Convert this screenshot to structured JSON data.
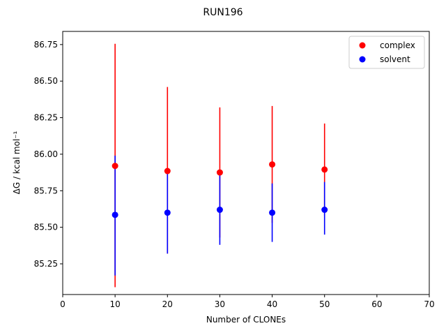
{
  "chart_data": {
    "type": "scatter",
    "title": "RUN196",
    "xlabel": "Number of CLONEs",
    "ylabel": "ΔG / kcal mol⁻¹",
    "xlim": [
      0,
      70
    ],
    "ylim": [
      85.04,
      86.84
    ],
    "xticks": [
      0,
      10,
      20,
      30,
      40,
      50,
      60,
      70
    ],
    "yticks": [
      85.25,
      85.5,
      85.75,
      86.0,
      86.25,
      86.5,
      86.75
    ],
    "ytick_labels": [
      "85.25",
      "85.50",
      "85.75",
      "86.00",
      "86.25",
      "86.50",
      "86.75"
    ],
    "grid": false,
    "legend_position": "top-right",
    "series": [
      {
        "name": "complex",
        "color": "#ff0000",
        "x": [
          10,
          20,
          30,
          40,
          50
        ],
        "y": [
          85.92,
          85.885,
          85.875,
          85.93,
          85.895
        ],
        "err_low": [
          85.09,
          85.32,
          85.43,
          85.53,
          85.58
        ],
        "err_high": [
          86.755,
          86.46,
          86.32,
          86.33,
          86.21
        ]
      },
      {
        "name": "solvent",
        "color": "#0000ff",
        "x": [
          10,
          20,
          30,
          40,
          50
        ],
        "y": [
          85.585,
          85.6,
          85.62,
          85.6,
          85.62
        ],
        "err_low": [
          85.17,
          85.32,
          85.38,
          85.4,
          85.45
        ],
        "err_high": [
          85.99,
          85.88,
          85.865,
          85.8,
          85.81
        ]
      }
    ]
  }
}
